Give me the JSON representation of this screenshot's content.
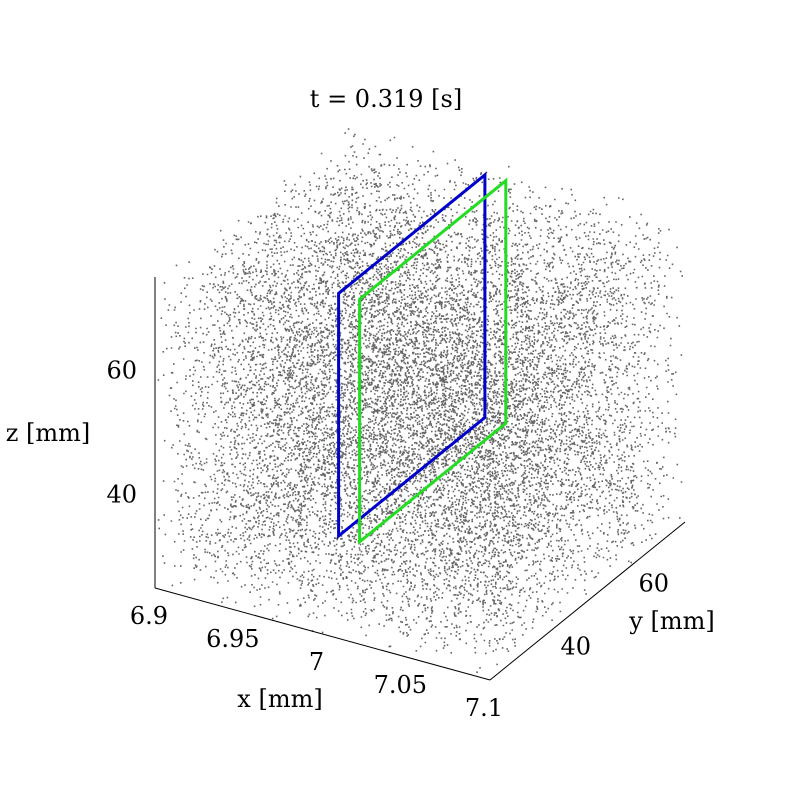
{
  "chart_data": {
    "type": "scatter",
    "title": "t = 0.319 [s]",
    "xlabel": "x [mm]",
    "ylabel": "y [mm]",
    "zlabel": "z [mm]",
    "xlim": [
      6.9,
      7.1
    ],
    "ylim": [
      25,
      75
    ],
    "zlim": [
      25,
      75
    ],
    "x_ticks": [
      "6.9",
      "6.95",
      "7",
      "7.05",
      "7.1"
    ],
    "y_ticks": [
      "40",
      "60"
    ],
    "z_ticks": [
      "40",
      "60"
    ],
    "point_color": "#666666",
    "frames": [
      {
        "name": "",
        "color": "#0000cc",
        "x": 6.9875,
        "corners": [
          [
            34.5,
            35
          ],
          [
            72,
            35
          ],
          [
            72,
            74
          ],
          [
            34.5,
            74
          ]
        ]
      },
      {
        "name": "",
        "color": "#22dd22",
        "x": 7.0,
        "corners": [
          [
            34.5,
            35
          ],
          [
            72,
            35
          ],
          [
            72,
            74
          ],
          [
            34.5,
            74
          ]
        ]
      }
    ],
    "points": "uniformly scattered particle cloud filling the box"
  }
}
